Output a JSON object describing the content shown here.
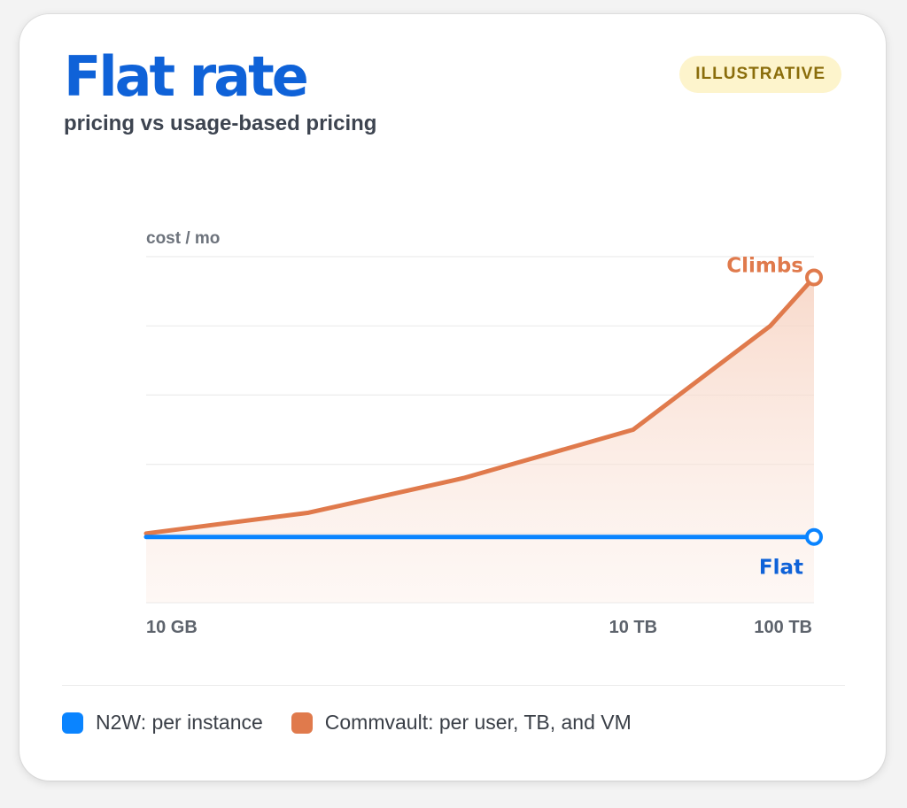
{
  "card": {
    "title": "Flat rate",
    "subtitle": "pricing vs usage-based pricing",
    "badge": "ILLUSTRATIVE"
  },
  "colors": {
    "n2w": "#0a84ff",
    "commvault": "#e07a4c",
    "title": "#0f62d8",
    "flat_label": "#0f62d8",
    "grid": "#ececec"
  },
  "chart_data": {
    "type": "line",
    "ylabel": "cost / mo",
    "x_scale": "log",
    "x_ticks": [
      {
        "value": 10,
        "label": "10 GB"
      },
      {
        "value": 10000,
        "label": "10 TB"
      },
      {
        "value": 100000,
        "label": "100 TB"
      }
    ],
    "xlim": [
      10,
      130000
    ],
    "ylim": [
      0,
      100
    ],
    "grid": true,
    "series": [
      {
        "name": "Commvault: per user, TB, and VM",
        "color": "#e07a4c",
        "fill": true,
        "end_label": "Climbs",
        "x": [
          10,
          100,
          900,
          10000,
          70000,
          130000
        ],
        "y": [
          20,
          26,
          36,
          50,
          80,
          94
        ]
      },
      {
        "name": "N2W: per instance",
        "color": "#0a84ff",
        "fill": false,
        "end_label": "Flat",
        "x": [
          10,
          130000
        ],
        "y": [
          19,
          19
        ]
      }
    ]
  },
  "legend": [
    {
      "label": "N2W: per instance",
      "color": "#0a84ff"
    },
    {
      "label": "Commvault: per user, TB, and VM",
      "color": "#e07a4c"
    }
  ]
}
